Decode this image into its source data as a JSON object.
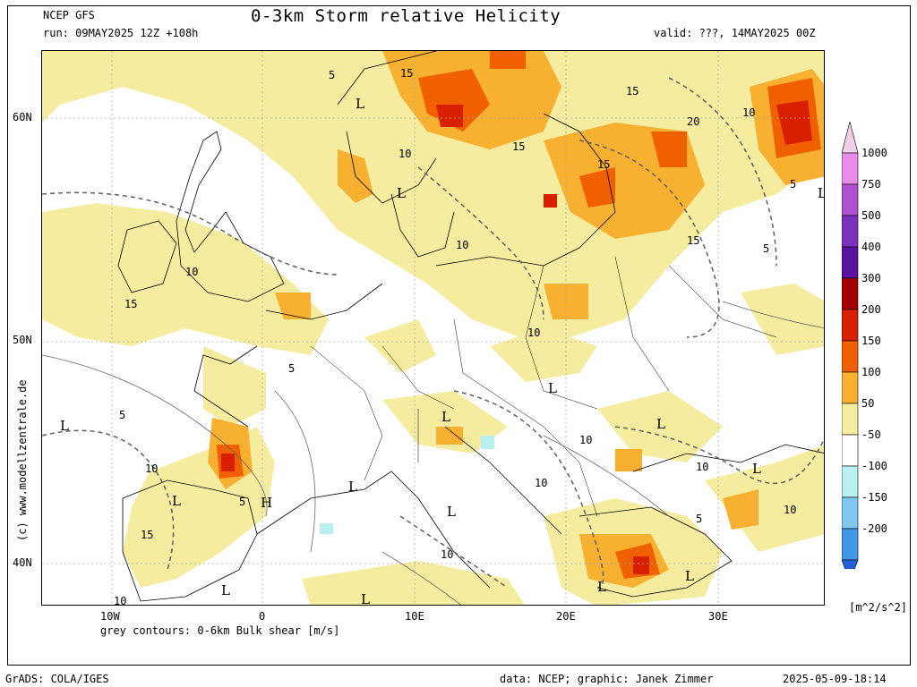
{
  "header": {
    "model": "NCEP GFS",
    "run": "run: 09MAY2025 12Z +108h",
    "title": "0-3km Storm relative Helicity",
    "valid": "valid: ???, 14MAY2025 00Z"
  },
  "map": {
    "lat_labels": [
      "60N",
      "50N",
      "40N"
    ],
    "lon_labels": [
      "10W",
      "0",
      "10E",
      "20E",
      "30E"
    ],
    "contour_note": "grey contours: 0-6km Bulk shear [m/s]",
    "contour_labels": [
      "5",
      "10",
      "15",
      "20"
    ],
    "pressure_marks": [
      "L",
      "H"
    ]
  },
  "colorbar": {
    "unit": "[m^2/s^2]",
    "levels": [
      "1000",
      "750",
      "500",
      "400",
      "300",
      "200",
      "150",
      "100",
      "50",
      "-50",
      "-100",
      "-150",
      "-200"
    ],
    "colors": [
      "#f0d0e8",
      "#e88ce8",
      "#b050d0",
      "#7c30c0",
      "#5a12a0",
      "#a50000",
      "#d82000",
      "#f06000",
      "#f8b030",
      "#f5eca0",
      "#ffffff",
      "#b8f0f0",
      "#80c8f0",
      "#4098e8",
      "#2060d8"
    ]
  },
  "credit": "(c) www.modellzentrale.de",
  "footer": {
    "left": "GrADS: COLA/IGES",
    "data": "data: NCEP; graphic: Janek Zimmer",
    "timestamp": "2025-05-09-18:14"
  }
}
